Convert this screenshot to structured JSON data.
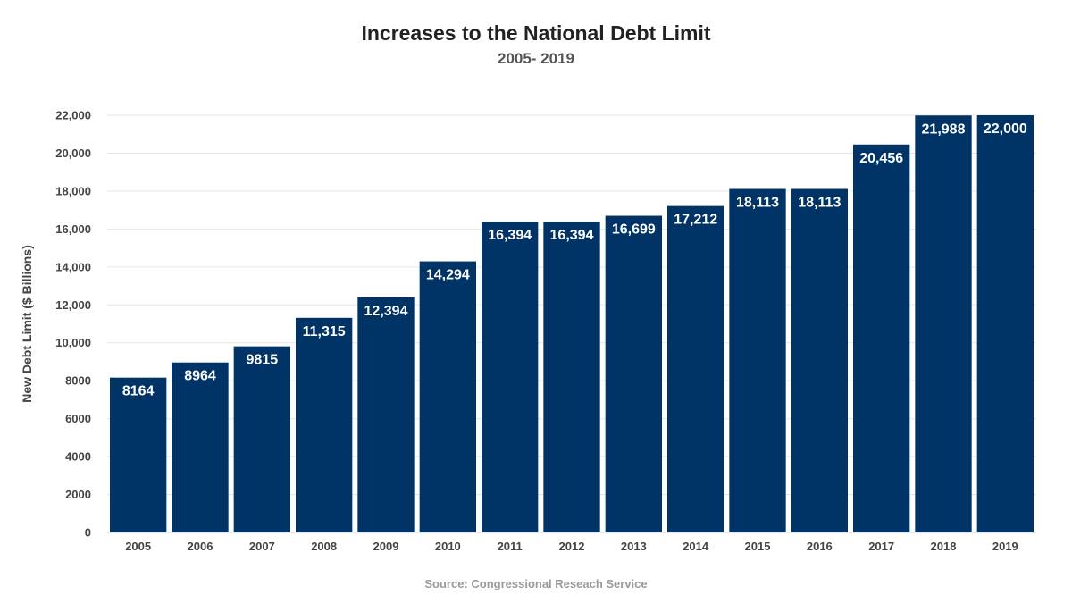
{
  "chart_data": {
    "type": "bar",
    "title": "Increases to the National Debt Limit",
    "subtitle": "2005- 2019",
    "xlabel": "",
    "ylabel": "New Debt Limit ($ Billions)",
    "source": "Source: Congressional Reseach Service",
    "categories": [
      "2005",
      "2006",
      "2007",
      "2008",
      "2009",
      "2010",
      "2011",
      "2012",
      "2013",
      "2014",
      "2015",
      "2016",
      "2017",
      "2018",
      "2019"
    ],
    "values": [
      8164,
      8964,
      9815,
      11315,
      12394,
      14294,
      16394,
      16394,
      16699,
      17212,
      18113,
      18113,
      20456,
      21988,
      22000
    ],
    "data_labels": [
      "8164",
      "8964",
      "9815",
      "11,315",
      "12,394",
      "14,294",
      "16,394",
      "16,394",
      "16,699",
      "17,212",
      "18,113",
      "18,113",
      "20,456",
      "21,988",
      "22,000"
    ],
    "yticks": [
      0,
      2000,
      4000,
      6000,
      8000,
      10000,
      12000,
      14000,
      16000,
      18000,
      20000,
      22000
    ],
    "ytick_labels": [
      "0",
      "2000",
      "4000",
      "6000",
      "8000",
      "10,000",
      "12,000",
      "14,000",
      "16,000",
      "18,000",
      "20,000",
      "22,000"
    ],
    "ylim": [
      0,
      22000
    ],
    "grid": true,
    "legend": "none",
    "colors": {
      "bar": "#003366",
      "bar_label": "#ffffff",
      "grid": "#e6e6e6",
      "axis": "#cccccc"
    }
  }
}
